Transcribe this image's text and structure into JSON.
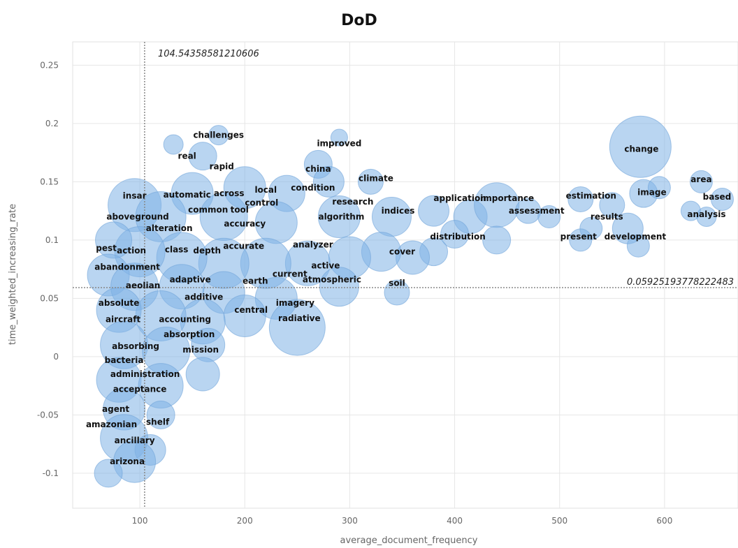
{
  "chart_data": {
    "type": "scatter",
    "title": "DoD",
    "xlabel": "average_document_frequency",
    "ylabel": "time_weighted_increasing_rate",
    "xlim": [
      36,
      670
    ],
    "ylim": [
      -0.13,
      0.27
    ],
    "xticks": [
      100,
      200,
      300,
      400,
      500,
      600
    ],
    "yticks": [
      -0.1,
      -0.05,
      0,
      0.05,
      0.1,
      0.15,
      0.2,
      0.25
    ],
    "grid": true,
    "reference_lines": {
      "x": 104.54358581210606,
      "y": 0.05925193778222483,
      "x_label": "104.54358581210606",
      "y_label": "0.05925193778222483"
    },
    "bubbles": [
      {
        "x": 175,
        "y": 0.19,
        "r": 14
      },
      {
        "x": 132,
        "y": 0.182,
        "r": 14
      },
      {
        "x": 290,
        "y": 0.188,
        "r": 12
      },
      {
        "x": 160,
        "y": 0.172,
        "r": 20
      },
      {
        "x": 270,
        "y": 0.165,
        "r": 20
      },
      {
        "x": 320,
        "y": 0.15,
        "r": 18
      },
      {
        "x": 280,
        "y": 0.15,
        "r": 22
      },
      {
        "x": 240,
        "y": 0.14,
        "r": 26
      },
      {
        "x": 200,
        "y": 0.145,
        "r": 30
      },
      {
        "x": 150,
        "y": 0.14,
        "r": 30
      },
      {
        "x": 95,
        "y": 0.13,
        "r": 38
      },
      {
        "x": 120,
        "y": 0.12,
        "r": 36
      },
      {
        "x": 180,
        "y": 0.12,
        "r": 34
      },
      {
        "x": 230,
        "y": 0.115,
        "r": 30
      },
      {
        "x": 290,
        "y": 0.12,
        "r": 30
      },
      {
        "x": 340,
        "y": 0.12,
        "r": 28
      },
      {
        "x": 380,
        "y": 0.125,
        "r": 22
      },
      {
        "x": 415,
        "y": 0.12,
        "r": 24
      },
      {
        "x": 440,
        "y": 0.13,
        "r": 32
      },
      {
        "x": 470,
        "y": 0.125,
        "r": 18
      },
      {
        "x": 490,
        "y": 0.12,
        "r": 16
      },
      {
        "x": 520,
        "y": 0.135,
        "r": 18
      },
      {
        "x": 550,
        "y": 0.13,
        "r": 18
      },
      {
        "x": 580,
        "y": 0.14,
        "r": 20
      },
      {
        "x": 595,
        "y": 0.145,
        "r": 16
      },
      {
        "x": 635,
        "y": 0.15,
        "r": 16
      },
      {
        "x": 655,
        "y": 0.135,
        "r": 16
      },
      {
        "x": 625,
        "y": 0.125,
        "r": 14
      },
      {
        "x": 640,
        "y": 0.12,
        "r": 14
      },
      {
        "x": 577,
        "y": 0.18,
        "r": 44
      },
      {
        "x": 530,
        "y": 0.11,
        "r": 16
      },
      {
        "x": 565,
        "y": 0.11,
        "r": 22
      },
      {
        "x": 575,
        "y": 0.095,
        "r": 16
      },
      {
        "x": 520,
        "y": 0.1,
        "r": 16
      },
      {
        "x": 440,
        "y": 0.1,
        "r": 20
      },
      {
        "x": 400,
        "y": 0.105,
        "r": 20
      },
      {
        "x": 380,
        "y": 0.09,
        "r": 20
      },
      {
        "x": 360,
        "y": 0.085,
        "r": 24
      },
      {
        "x": 330,
        "y": 0.09,
        "r": 28
      },
      {
        "x": 300,
        "y": 0.085,
        "r": 30
      },
      {
        "x": 260,
        "y": 0.08,
        "r": 32
      },
      {
        "x": 220,
        "y": 0.08,
        "r": 36
      },
      {
        "x": 180,
        "y": 0.08,
        "r": 36
      },
      {
        "x": 140,
        "y": 0.085,
        "r": 36
      },
      {
        "x": 100,
        "y": 0.09,
        "r": 36
      },
      {
        "x": 75,
        "y": 0.1,
        "r": 26
      },
      {
        "x": 70,
        "y": 0.07,
        "r": 30
      },
      {
        "x": 95,
        "y": 0.06,
        "r": 34
      },
      {
        "x": 140,
        "y": 0.06,
        "r": 32
      },
      {
        "x": 180,
        "y": 0.055,
        "r": 30
      },
      {
        "x": 230,
        "y": 0.05,
        "r": 30
      },
      {
        "x": 290,
        "y": 0.06,
        "r": 28
      },
      {
        "x": 345,
        "y": 0.055,
        "r": 18
      },
      {
        "x": 250,
        "y": 0.025,
        "r": 40
      },
      {
        "x": 200,
        "y": 0.035,
        "r": 30
      },
      {
        "x": 160,
        "y": 0.03,
        "r": 32
      },
      {
        "x": 120,
        "y": 0.035,
        "r": 36
      },
      {
        "x": 80,
        "y": 0.04,
        "r": 32
      },
      {
        "x": 85,
        "y": 0.01,
        "r": 34
      },
      {
        "x": 125,
        "y": 0.005,
        "r": 34
      },
      {
        "x": 165,
        "y": 0.01,
        "r": 24
      },
      {
        "x": 80,
        "y": -0.02,
        "r": 32
      },
      {
        "x": 120,
        "y": -0.025,
        "r": 32
      },
      {
        "x": 160,
        "y": -0.015,
        "r": 24
      },
      {
        "x": 85,
        "y": -0.045,
        "r": 30
      },
      {
        "x": 120,
        "y": -0.05,
        "r": 20
      },
      {
        "x": 85,
        "y": -0.07,
        "r": 34
      },
      {
        "x": 110,
        "y": -0.08,
        "r": 22
      },
      {
        "x": 95,
        "y": -0.09,
        "r": 30
      },
      {
        "x": 70,
        "y": -0.1,
        "r": 20
      }
    ],
    "labels": [
      {
        "text": "challenges",
        "x": 175,
        "y": 0.19
      },
      {
        "text": "real",
        "x": 145,
        "y": 0.172
      },
      {
        "text": "rapid",
        "x": 178,
        "y": 0.163
      },
      {
        "text": "improved",
        "x": 290,
        "y": 0.183
      },
      {
        "text": "change",
        "x": 578,
        "y": 0.178
      },
      {
        "text": "china",
        "x": 270,
        "y": 0.161
      },
      {
        "text": "climate",
        "x": 325,
        "y": 0.153
      },
      {
        "text": "condition",
        "x": 265,
        "y": 0.145
      },
      {
        "text": "local",
        "x": 220,
        "y": 0.143
      },
      {
        "text": "insar",
        "x": 95,
        "y": 0.138
      },
      {
        "text": "automatic",
        "x": 145,
        "y": 0.139
      },
      {
        "text": "across",
        "x": 185,
        "y": 0.14
      },
      {
        "text": "area",
        "x": 635,
        "y": 0.152
      },
      {
        "text": "image",
        "x": 588,
        "y": 0.141
      },
      {
        "text": "based",
        "x": 650,
        "y": 0.137
      },
      {
        "text": "application",
        "x": 405,
        "y": 0.136
      },
      {
        "text": "importance",
        "x": 450,
        "y": 0.136
      },
      {
        "text": "estimation",
        "x": 530,
        "y": 0.138
      },
      {
        "text": "research",
        "x": 303,
        "y": 0.133
      },
      {
        "text": "control",
        "x": 216,
        "y": 0.132
      },
      {
        "text": "common",
        "x": 165,
        "y": 0.126
      },
      {
        "text": "tool",
        "x": 195,
        "y": 0.126
      },
      {
        "text": "aboveground",
        "x": 98,
        "y": 0.12
      },
      {
        "text": "indices",
        "x": 346,
        "y": 0.125
      },
      {
        "text": "assessment",
        "x": 478,
        "y": 0.125
      },
      {
        "text": "results",
        "x": 545,
        "y": 0.12
      },
      {
        "text": "analysis",
        "x": 640,
        "y": 0.122
      },
      {
        "text": "algorithm",
        "x": 292,
        "y": 0.12
      },
      {
        "text": "accuracy",
        "x": 200,
        "y": 0.114
      },
      {
        "text": "alteration",
        "x": 128,
        "y": 0.11
      },
      {
        "text": "distribution",
        "x": 403,
        "y": 0.103
      },
      {
        "text": "present",
        "x": 518,
        "y": 0.103
      },
      {
        "text": "development",
        "x": 572,
        "y": 0.103
      },
      {
        "text": "analyzer",
        "x": 265,
        "y": 0.096
      },
      {
        "text": "accurate",
        "x": 199,
        "y": 0.095
      },
      {
        "text": "pest",
        "x": 68,
        "y": 0.093
      },
      {
        "text": "action",
        "x": 92,
        "y": 0.091
      },
      {
        "text": "class",
        "x": 135,
        "y": 0.092
      },
      {
        "text": "depth",
        "x": 164,
        "y": 0.091
      },
      {
        "text": "cover",
        "x": 350,
        "y": 0.09
      },
      {
        "text": "abandonment",
        "x": 88,
        "y": 0.077
      },
      {
        "text": "active",
        "x": 277,
        "y": 0.078
      },
      {
        "text": "current",
        "x": 243,
        "y": 0.071
      },
      {
        "text": "adaptive",
        "x": 148,
        "y": 0.066
      },
      {
        "text": "earth",
        "x": 210,
        "y": 0.065
      },
      {
        "text": "atmospheric",
        "x": 283,
        "y": 0.066
      },
      {
        "text": "soil",
        "x": 345,
        "y": 0.063
      },
      {
        "text": "aeolian",
        "x": 103,
        "y": 0.061
      },
      {
        "text": "additive",
        "x": 161,
        "y": 0.051
      },
      {
        "text": "absolute",
        "x": 80,
        "y": 0.046
      },
      {
        "text": "imagery",
        "x": 248,
        "y": 0.046
      },
      {
        "text": "central",
        "x": 206,
        "y": 0.04
      },
      {
        "text": "radiative",
        "x": 252,
        "y": 0.033
      },
      {
        "text": "aircraft",
        "x": 84,
        "y": 0.032
      },
      {
        "text": "accounting",
        "x": 143,
        "y": 0.032
      },
      {
        "text": "absorption",
        "x": 147,
        "y": 0.019
      },
      {
        "text": "absorbing",
        "x": 96,
        "y": 0.009
      },
      {
        "text": "mission",
        "x": 158,
        "y": 0.006
      },
      {
        "text": "bacteria",
        "x": 85,
        "y": -0.003
      },
      {
        "text": "administration",
        "x": 105,
        "y": -0.015
      },
      {
        "text": "acceptance",
        "x": 100,
        "y": -0.028
      },
      {
        "text": "agent",
        "x": 77,
        "y": -0.045
      },
      {
        "text": "amazonian",
        "x": 73,
        "y": -0.058
      },
      {
        "text": "shelf",
        "x": 117,
        "y": -0.056
      },
      {
        "text": "ancillary",
        "x": 95,
        "y": -0.072
      },
      {
        "text": "arizona",
        "x": 88,
        "y": -0.09
      }
    ]
  }
}
